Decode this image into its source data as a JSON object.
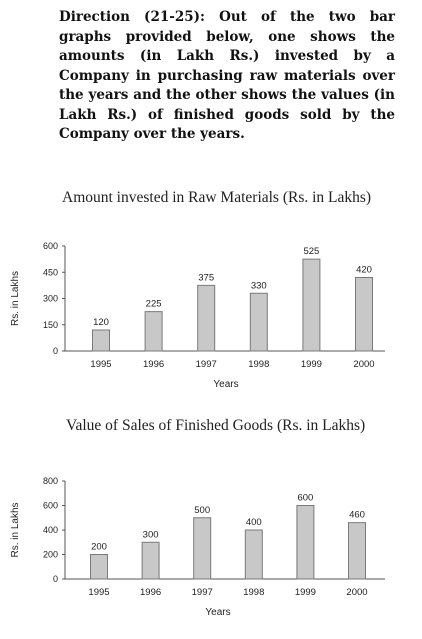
{
  "direction": "Direction (21-25): Out of the two bar graphs provided below, one shows the amounts (in Lakh Rs.) invested by a Company in purchasing raw materials over the years and the other shows the values (in Lakh Rs.) of finished goods sold by the Company over the years.",
  "chart_data": [
    {
      "type": "bar",
      "title": "Amount invested in Raw Materials (Rs. in Lakhs)",
      "xlabel": "Years",
      "ylabel": "Rs. in Lakhs",
      "categories": [
        "1995",
        "1996",
        "1997",
        "1998",
        "1999",
        "2000"
      ],
      "values": [
        120,
        225,
        375,
        330,
        525,
        420
      ],
      "ylim": [
        0,
        600
      ],
      "yticks": [
        0,
        150,
        300,
        450,
        600
      ],
      "bar_color": "#c8c8c8",
      "bar_edge_color": "#7a7a7a",
      "grid": false
    },
    {
      "type": "bar",
      "title": "Value of Sales of Finished Goods (Rs. in Lakhs)",
      "xlabel": "Years",
      "ylabel": "Rs. in Lakhs",
      "categories": [
        "1995",
        "1996",
        "1997",
        "1998",
        "1999",
        "2000"
      ],
      "values": [
        200,
        300,
        500,
        400,
        600,
        460
      ],
      "ylim": [
        0,
        800
      ],
      "yticks": [
        0,
        200,
        400,
        600,
        800
      ],
      "bar_color": "#c8c8c8",
      "bar_edge_color": "#7a7a7a",
      "grid": false
    }
  ]
}
